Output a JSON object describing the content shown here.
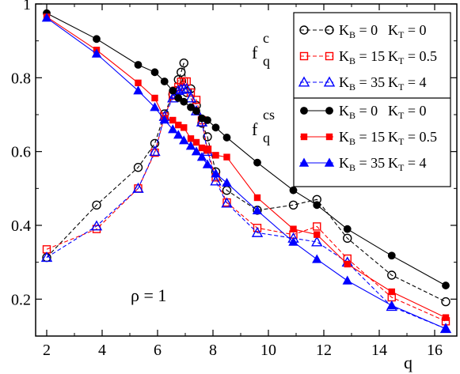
{
  "chart_data": {
    "type": "line",
    "xlabel": "q",
    "ylabel": "",
    "xlim": [
      1.6,
      16.8
    ],
    "ylim": [
      0.1,
      1.0
    ],
    "xticks": [
      "2",
      "4",
      "6",
      "8",
      "10",
      "12",
      "14",
      "16"
    ],
    "yticks": [
      "0.2",
      "0.4",
      "0.6",
      "0.8",
      "1"
    ],
    "annotation": "ρ = 1",
    "legend": {
      "group1_label": "f",
      "group1_sup": "c",
      "group1_sub": "q",
      "group2_label": "f",
      "group2_sup": "cs",
      "group2_sub": "q"
    },
    "series": [
      {
        "name": "K_B = 0  K_T = 0",
        "group": "fc",
        "kB": "0",
        "kT": "0",
        "color": "#000000",
        "marker": "circle-open",
        "dash": true,
        "x": [
          2.0,
          3.8,
          5.3,
          5.9,
          6.25,
          6.55,
          6.65,
          6.75,
          6.85,
          6.95,
          7.05,
          7.2,
          7.4,
          7.6,
          7.8,
          8.1,
          8.5,
          9.6,
          10.9,
          11.75,
          12.85,
          14.45,
          16.4
        ],
        "y": [
          0.313,
          0.455,
          0.557,
          0.622,
          0.702,
          0.755,
          0.765,
          0.795,
          0.815,
          0.84,
          0.76,
          0.77,
          0.725,
          0.677,
          0.64,
          0.545,
          0.495,
          0.441,
          0.455,
          0.47,
          0.365,
          0.265,
          0.193
        ]
      },
      {
        "name": "K_B = 15  K_T = 0.5",
        "group": "fc",
        "kB": "15",
        "kT": "0.5",
        "color": "#ff0000",
        "marker": "square-open",
        "dash": true,
        "x": [
          2.0,
          3.8,
          5.3,
          5.9,
          6.25,
          6.55,
          6.65,
          6.75,
          6.85,
          6.95,
          7.05,
          7.2,
          7.4,
          7.6,
          7.8,
          8.1,
          8.5,
          9.6,
          10.9,
          11.75,
          12.85,
          14.45,
          16.4
        ],
        "y": [
          0.335,
          0.39,
          0.5,
          0.597,
          0.695,
          0.752,
          0.765,
          0.775,
          0.789,
          0.79,
          0.79,
          0.76,
          0.74,
          0.685,
          0.605,
          0.53,
          0.462,
          0.393,
          0.375,
          0.397,
          0.31,
          0.205,
          0.14
        ]
      },
      {
        "name": "K_B = 35  K_T = 4",
        "group": "fc",
        "kB": "35",
        "kT": "4",
        "color": "#0000ff",
        "marker": "triangle-open",
        "dash": true,
        "x": [
          2.0,
          3.8,
          5.3,
          5.9,
          6.25,
          6.55,
          6.65,
          6.75,
          6.85,
          6.95,
          7.05,
          7.2,
          7.4,
          7.6,
          7.8,
          8.1,
          8.5,
          9.6,
          10.9,
          11.75,
          12.85,
          14.45,
          16.4
        ],
        "y": [
          0.313,
          0.398,
          0.5,
          0.6,
          0.695,
          0.745,
          0.755,
          0.765,
          0.768,
          0.77,
          0.77,
          0.745,
          0.71,
          0.68,
          0.6,
          0.52,
          0.46,
          0.38,
          0.365,
          0.355,
          0.3,
          0.18,
          0.12
        ]
      },
      {
        "name": "K_B = 0  K_T = 0",
        "group": "fcs",
        "kB": "0",
        "kT": "0",
        "color": "#000000",
        "marker": "circle-filled",
        "dash": false,
        "x": [
          2.0,
          3.8,
          5.3,
          5.9,
          6.25,
          6.55,
          6.75,
          6.95,
          7.2,
          7.4,
          7.6,
          7.8,
          8.1,
          8.5,
          9.6,
          10.9,
          11.75,
          12.85,
          14.45,
          16.4
        ],
        "y": [
          0.975,
          0.905,
          0.835,
          0.815,
          0.79,
          0.765,
          0.745,
          0.735,
          0.72,
          0.71,
          0.69,
          0.685,
          0.665,
          0.638,
          0.57,
          0.495,
          0.455,
          0.39,
          0.318,
          0.237
        ]
      },
      {
        "name": "K_B = 15  K_T = 0.5",
        "group": "fcs",
        "kB": "15",
        "kT": "0.5",
        "color": "#ff0000",
        "marker": "square-filled",
        "dash": false,
        "x": [
          2.0,
          3.8,
          5.3,
          5.9,
          6.25,
          6.55,
          6.75,
          6.95,
          7.2,
          7.4,
          7.6,
          7.8,
          8.1,
          8.5,
          9.6,
          10.9,
          11.75,
          12.85,
          14.45,
          16.4
        ],
        "y": [
          0.965,
          0.875,
          0.786,
          0.745,
          0.69,
          0.685,
          0.672,
          0.665,
          0.635,
          0.625,
          0.61,
          0.605,
          0.59,
          0.585,
          0.475,
          0.39,
          0.375,
          0.295,
          0.22,
          0.15
        ]
      },
      {
        "name": "K_B = 35  K_T = 4",
        "group": "fcs",
        "kB": "35",
        "kT": "4",
        "color": "#0000ff",
        "marker": "triangle-filled",
        "dash": false,
        "x": [
          2.0,
          3.8,
          5.3,
          5.9,
          6.25,
          6.55,
          6.75,
          6.95,
          7.2,
          7.4,
          7.6,
          7.8,
          8.1,
          8.5,
          9.6,
          10.9,
          11.75,
          12.85,
          14.45,
          16.4
        ],
        "y": [
          0.962,
          0.865,
          0.765,
          0.72,
          0.686,
          0.66,
          0.645,
          0.63,
          0.615,
          0.6,
          0.585,
          0.565,
          0.54,
          0.515,
          0.44,
          0.355,
          0.308,
          0.25,
          0.183,
          0.12
        ]
      }
    ]
  }
}
